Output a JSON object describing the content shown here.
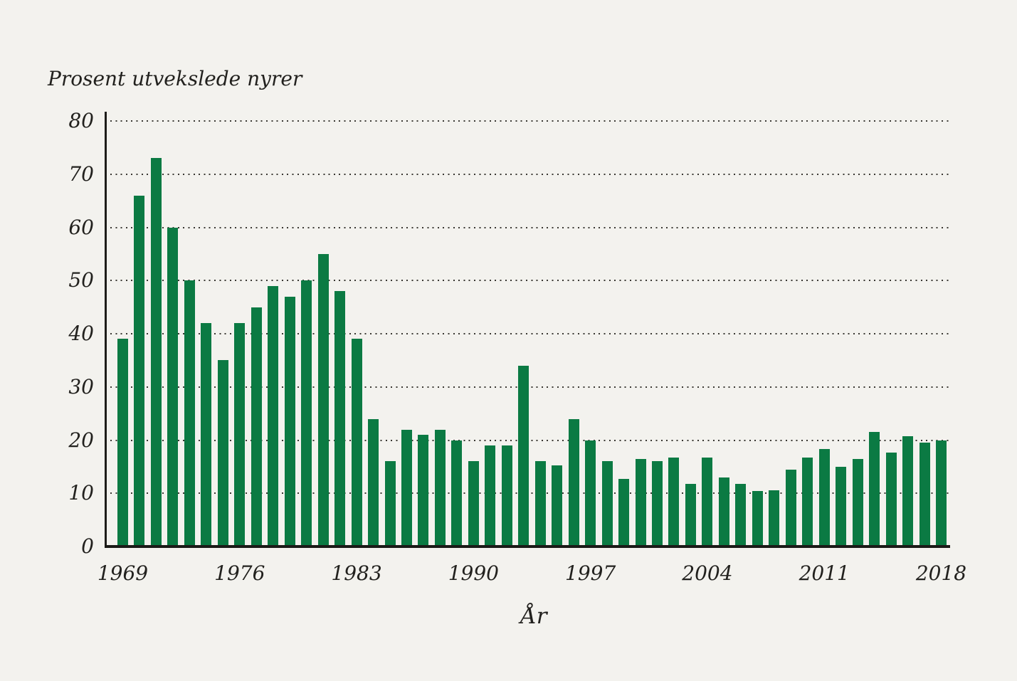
{
  "page": {
    "background_color": "#f3f2ee",
    "text_color": "#22211e"
  },
  "chart_data": {
    "type": "bar",
    "title": "Prosent utvekslede nyrer",
    "xlabel": "År",
    "ylim": [
      0,
      80
    ],
    "y_ticks": [
      0,
      10,
      20,
      30,
      40,
      50,
      60,
      70,
      80
    ],
    "x_tick_labels": [
      "1969",
      "1976",
      "1983",
      "1990",
      "1997",
      "2004",
      "2011",
      "2018"
    ],
    "grid": "dotted-horizontal",
    "legend": "none",
    "bar_color": "#0b7a43",
    "axis_color": "#1e1d1a",
    "categories": [
      1969,
      1970,
      1971,
      1972,
      1973,
      1974,
      1975,
      1976,
      1977,
      1978,
      1979,
      1980,
      1981,
      1982,
      1983,
      1984,
      1985,
      1986,
      1987,
      1988,
      1989,
      1990,
      1991,
      1992,
      1993,
      1994,
      1995,
      1996,
      1997,
      1998,
      1999,
      2000,
      2001,
      2002,
      2003,
      2004,
      2005,
      2006,
      2007,
      2008,
      2009,
      2010,
      2011,
      2012,
      2013,
      2014,
      2015,
      2016,
      2017,
      2018
    ],
    "values": [
      39,
      66,
      73,
      60,
      50,
      42,
      35,
      42,
      45,
      49,
      47,
      50,
      55,
      48,
      39,
      24,
      16,
      22,
      21,
      22,
      20,
      16,
      19,
      19,
      34,
      16,
      15.3,
      24,
      20,
      16,
      12.7,
      16.5,
      16,
      16.7,
      11.8,
      16.7,
      13,
      11.8,
      10.4,
      10.6,
      14.4,
      16.7,
      18.3,
      15,
      16.5,
      21.5,
      17.7,
      20.7,
      19.6,
      20
    ]
  }
}
